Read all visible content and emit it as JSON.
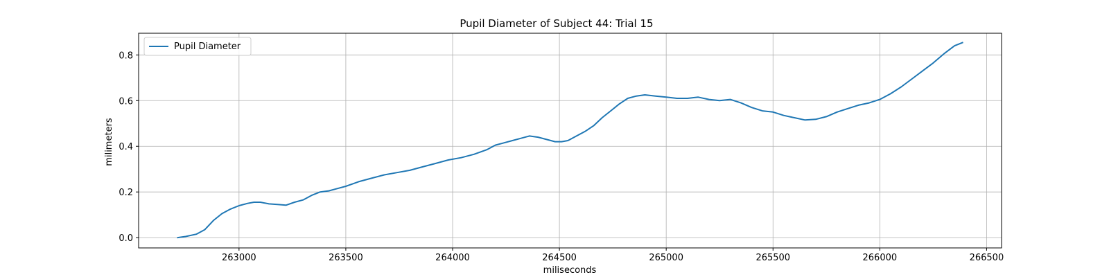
{
  "chart_data": {
    "type": "line",
    "title": "Pupil Diameter of Subject 44: Trial 15",
    "xlabel": "miliseconds",
    "ylabel": "milimeters",
    "xlim": [
      262530,
      266570
    ],
    "ylim": [
      -0.045,
      0.895
    ],
    "xticks": [
      263000,
      263500,
      264000,
      264500,
      265000,
      265500,
      266000,
      266500
    ],
    "xtick_labels": [
      "263000",
      "263500",
      "264000",
      "264500",
      "265000",
      "265500",
      "266000",
      "266500"
    ],
    "yticks": [
      0.0,
      0.2,
      0.4,
      0.6,
      0.8
    ],
    "ytick_labels": [
      "0.0",
      "0.2",
      "0.4",
      "0.6",
      "0.8"
    ],
    "grid": true,
    "legend_position": "top-left",
    "series": [
      {
        "name": "Pupil Diameter",
        "color": "#1f77b4",
        "x": [
          262710,
          262750,
          262800,
          262840,
          262880,
          262920,
          262960,
          263000,
          263040,
          263070,
          263100,
          263140,
          263180,
          263220,
          263260,
          263300,
          263340,
          263380,
          263420,
          263460,
          263500,
          263560,
          263620,
          263680,
          263740,
          263800,
          263860,
          263920,
          263980,
          264040,
          264100,
          264160,
          264200,
          264240,
          264280,
          264320,
          264360,
          264400,
          264440,
          264480,
          264510,
          264540,
          264580,
          264620,
          264660,
          264700,
          264740,
          264780,
          264820,
          264860,
          264900,
          264950,
          265000,
          265050,
          265100,
          265150,
          265200,
          265250,
          265300,
          265350,
          265400,
          265450,
          265500,
          265550,
          265600,
          265650,
          265700,
          265750,
          265800,
          265850,
          265900,
          265950,
          266000,
          266050,
          266100,
          266150,
          266200,
          266250,
          266300,
          266350,
          266390
        ],
        "values": [
          0.0,
          0.005,
          0.015,
          0.035,
          0.075,
          0.105,
          0.125,
          0.14,
          0.15,
          0.155,
          0.155,
          0.148,
          0.145,
          0.142,
          0.155,
          0.165,
          0.185,
          0.2,
          0.205,
          0.215,
          0.225,
          0.245,
          0.26,
          0.275,
          0.285,
          0.295,
          0.31,
          0.325,
          0.34,
          0.35,
          0.365,
          0.385,
          0.405,
          0.415,
          0.425,
          0.435,
          0.445,
          0.44,
          0.43,
          0.42,
          0.42,
          0.425,
          0.445,
          0.465,
          0.49,
          0.525,
          0.555,
          0.585,
          0.61,
          0.62,
          0.625,
          0.62,
          0.615,
          0.61,
          0.61,
          0.615,
          0.605,
          0.6,
          0.605,
          0.59,
          0.57,
          0.555,
          0.55,
          0.535,
          0.525,
          0.515,
          0.518,
          0.53,
          0.55,
          0.565,
          0.58,
          0.59,
          0.605,
          0.63,
          0.66,
          0.695,
          0.73,
          0.765,
          0.805,
          0.84,
          0.855
        ]
      }
    ]
  }
}
